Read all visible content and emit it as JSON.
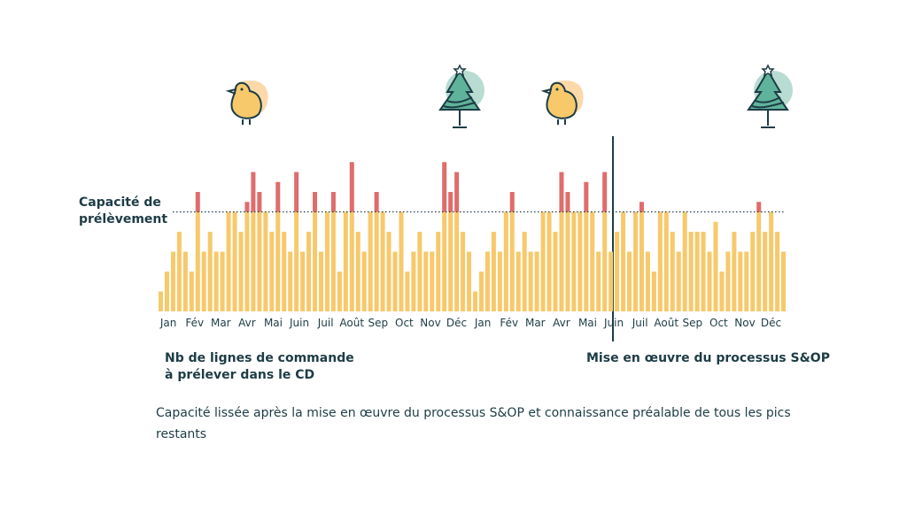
{
  "chart_data": {
    "type": "bar",
    "capacity_label": [
      "Capacité de",
      "prélèvement"
    ],
    "y_label": [
      "Nb de lignes de commande",
      "à prélever dans le CD"
    ],
    "marker_label": "Mise en œuvre du processus S&OP",
    "note": "Capacité lissée après la mise en œuvre du processus S&OP et connaissance préalable de tous les pics restants",
    "month_labels": [
      "Jan",
      "Fév",
      "Mar",
      "Avr",
      "Mai",
      "Juin",
      "Juil",
      "Août",
      "Sep",
      "Oct",
      "Nov",
      "Déc",
      "Jan",
      "Fév",
      "Mar",
      "Avr",
      "Mai",
      "Juin",
      "Juil",
      "Août",
      "Sep",
      "Oct",
      "Nov",
      "Déc"
    ],
    "values": [
      1,
      2,
      3,
      4,
      3,
      2,
      6,
      3,
      4,
      3,
      3,
      5,
      5,
      4,
      5.5,
      7,
      6,
      5,
      4,
      6.5,
      4,
      3,
      7,
      3,
      4,
      6,
      3,
      5,
      6,
      2,
      5,
      7.5,
      4,
      3,
      5,
      6,
      5,
      4,
      3,
      5,
      2,
      3,
      4,
      3,
      3,
      4,
      7.5,
      6,
      7,
      4,
      3,
      1,
      2,
      3,
      4,
      3,
      5,
      6,
      3,
      4,
      3,
      3,
      5,
      5,
      4,
      7,
      6,
      5,
      5,
      6.5,
      5,
      3,
      7,
      3,
      4,
      5,
      3,
      5,
      5.5,
      3,
      2,
      5,
      5,
      4,
      3,
      5,
      4,
      4,
      4,
      3,
      4.5,
      2,
      3,
      4,
      3,
      3,
      4,
      5.5,
      4,
      5,
      4,
      3
    ],
    "capacity": 5,
    "ylim": [
      0,
      8
    ],
    "color": "#f7c96b",
    "over_color": "#e06c6c"
  }
}
